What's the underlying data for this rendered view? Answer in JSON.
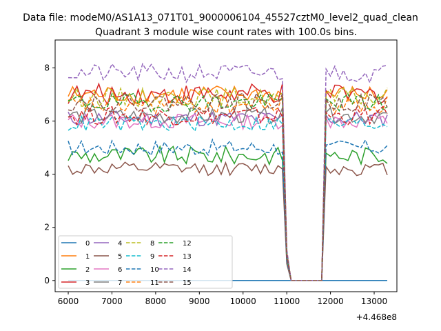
{
  "chart_data": {
    "type": "line",
    "suptitle": "Data file: modeM0/AS1A13_071T01_9000006104_45527cztM0_level2_quad_clean",
    "title": "Quadrant 3 module wise count rates with 100.0s bins.",
    "xlabel": "",
    "ylabel": "",
    "x_offset_label": "+4.468e8",
    "xlim": [
      5700,
      13520
    ],
    "ylim": [
      -0.42,
      9.05
    ],
    "xticks": [
      6000,
      7000,
      8000,
      9000,
      10000,
      11000,
      12000,
      13000
    ],
    "yticks": [
      0,
      2,
      4,
      6,
      8
    ],
    "grid": false,
    "legend_position": "lower-left",
    "legend_columns": 5,
    "gap": [
      11100,
      11800
    ],
    "series": [
      {
        "name": "0",
        "color": "#1f77b4",
        "dash": "solid",
        "level": 0,
        "amp": 0
      },
      {
        "name": "1",
        "color": "#ff7f0e",
        "dash": "solid",
        "level": 7.0,
        "amp": 0.35
      },
      {
        "name": "2",
        "color": "#2ca02c",
        "dash": "solid",
        "level": 4.7,
        "amp": 0.35
      },
      {
        "name": "3",
        "color": "#d62728",
        "dash": "solid",
        "level": 7.0,
        "amp": 0.4
      },
      {
        "name": "4",
        "color": "#9467bd",
        "dash": "solid",
        "level": 6.1,
        "amp": 0.3
      },
      {
        "name": "5",
        "color": "#8c564b",
        "dash": "solid",
        "level": 4.2,
        "amp": 0.25
      },
      {
        "name": "6",
        "color": "#e377c2",
        "dash": "solid",
        "level": 6.0,
        "amp": 0.3
      },
      {
        "name": "7",
        "color": "#7f7f7f",
        "dash": "solid",
        "level": 6.2,
        "amp": 0.3
      },
      {
        "name": "8",
        "color": "#bcbd22",
        "dash": "dashed",
        "level": 6.9,
        "amp": 0.35
      },
      {
        "name": "9",
        "color": "#17becf",
        "dash": "dashed",
        "level": 5.9,
        "amp": 0.3
      },
      {
        "name": "10",
        "color": "#1f77b4",
        "dash": "dashed",
        "level": 5.0,
        "amp": 0.3
      },
      {
        "name": "11",
        "color": "#ff7f0e",
        "dash": "dashed",
        "level": 6.6,
        "amp": 0.35
      },
      {
        "name": "12",
        "color": "#2ca02c",
        "dash": "dashed",
        "level": 6.7,
        "amp": 0.35
      },
      {
        "name": "13",
        "color": "#d62728",
        "dash": "dashed",
        "level": 6.2,
        "amp": 0.35
      },
      {
        "name": "14",
        "color": "#9467bd",
        "dash": "dashed",
        "level": 7.8,
        "amp": 0.35
      },
      {
        "name": "15",
        "color": "#8c564b",
        "dash": "dashed",
        "level": 6.7,
        "amp": 0.35
      }
    ]
  }
}
